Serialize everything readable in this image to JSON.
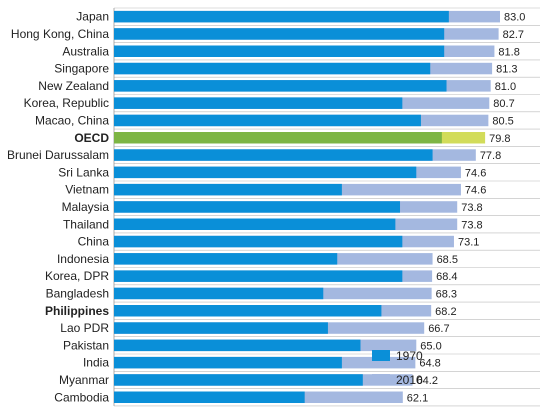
{
  "chart_data": {
    "type": "bar",
    "orientation": "horizontal",
    "overlay": true,
    "categories": [
      "Japan",
      "Hong Kong, China",
      "Australia",
      "Singapore",
      "New Zealand",
      "Korea, Republic",
      "Macao, China",
      "OECD",
      "Brunei Darussalam",
      "Sri Lanka",
      "Vietnam",
      "Malaysia",
      "Thailand",
      "China",
      "Indonesia",
      "Korea, DPR",
      "Bangladesh",
      "Philippines",
      "Lao PDR",
      "Pakistan",
      "India",
      "Myanmar",
      "Cambodia"
    ],
    "bold_categories": [
      "OECD",
      "Philippines"
    ],
    "series": [
      {
        "name": "1970",
        "values": [
          72.0,
          71.0,
          71.0,
          68.0,
          71.5,
          62.0,
          66.0,
          70.5,
          68.5,
          65.0,
          49.0,
          61.5,
          60.5,
          62.0,
          48.0,
          62.0,
          45.0,
          57.5,
          46.0,
          53.0,
          49.0,
          53.5,
          41.0
        ]
      },
      {
        "name": "2010",
        "values": [
          83.0,
          82.7,
          81.8,
          81.3,
          81.0,
          80.7,
          80.5,
          79.8,
          77.8,
          74.6,
          74.6,
          73.8,
          73.8,
          73.1,
          68.5,
          68.4,
          68.3,
          68.2,
          66.7,
          65.0,
          64.8,
          64.2,
          62.1
        ]
      }
    ],
    "value_labels": [
      "83.0",
      "82.7",
      "81.8",
      "81.3",
      "81.0",
      "80.7",
      "80.5",
      "79.8",
      "77.8",
      "74.6",
      "74.6",
      "73.8",
      "73.8",
      "73.1",
      "68.5",
      "68.4",
      "68.3",
      "68.2",
      "66.7",
      "65.0",
      "64.8",
      "64.2",
      "62.1"
    ],
    "highlight_category": "OECD",
    "colors": {
      "1970": "#0a8fd8",
      "2010": "#a4b8e0",
      "highlight_1970": "#7db544",
      "highlight_2010": "#d2dc5a",
      "grid": "#bbbbbb"
    },
    "legend": {
      "position": "bottom-right",
      "entries": [
        "1970",
        "2010"
      ]
    },
    "grid": true
  }
}
